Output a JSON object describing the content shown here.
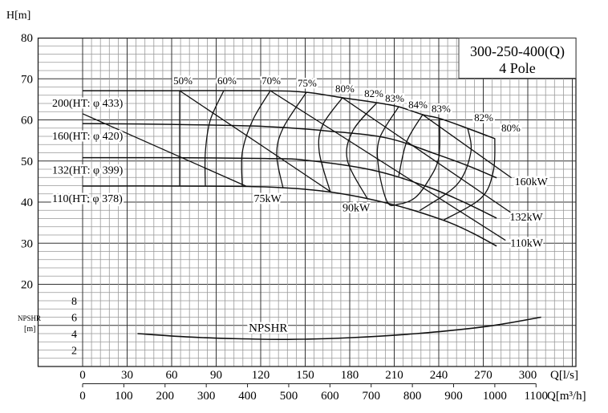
{
  "chart_data": {
    "type": "line",
    "title": "300-250-400(Q)",
    "subtitle": "4 Pole",
    "ylabel": "H[m]",
    "npsh_label": "NPSHR",
    "npsh_unit": "[m]",
    "xlabel": "Q[l/s]",
    "x2label": "Q[m³/h]",
    "xlim": [
      -30.3,
      332.4
    ],
    "ylim": [
      0,
      80
    ],
    "grid": true,
    "yticks": [
      20,
      30,
      40,
      50,
      60,
      70,
      80
    ],
    "npsh_ticks": [
      2,
      4,
      6,
      8
    ],
    "xticks": [
      0,
      30,
      60,
      90,
      120,
      150,
      180,
      210,
      240,
      270,
      300
    ],
    "x2ticks": [
      0,
      100,
      200,
      300,
      400,
      500,
      600,
      700,
      800,
      900,
      1000,
      1100
    ],
    "hq_curves": [
      {
        "label": "200(HT: φ 433)",
        "points": [
          [
            0,
            67.1
          ],
          [
            60,
            67.1
          ],
          [
            126,
            67.1
          ],
          [
            151,
            66.7
          ],
          [
            175,
            65.4
          ],
          [
            198,
            64.2
          ],
          [
            213,
            63.2
          ],
          [
            229,
            61.3
          ],
          [
            241,
            60.3
          ],
          [
            259,
            58
          ],
          [
            278,
            55.4
          ]
        ]
      },
      {
        "label": "160(HT: φ 420)",
        "points": [
          [
            0,
            59.1
          ],
          [
            60,
            58.9
          ],
          [
            123,
            58.4
          ],
          [
            165,
            57.3
          ],
          [
            205,
            55.6
          ],
          [
            238,
            51.7
          ],
          [
            260,
            48.8
          ],
          [
            279,
            45.9
          ]
        ]
      },
      {
        "label": "132(HT: φ 399)",
        "points": [
          [
            0,
            50.8
          ],
          [
            60,
            50.8
          ],
          [
            123,
            50.6
          ],
          [
            150,
            50.2
          ],
          [
            195,
            47.8
          ],
          [
            231,
            43.9
          ],
          [
            255,
            40.3
          ],
          [
            279,
            36.1
          ]
        ]
      },
      {
        "label": "110(HT: φ 378)",
        "points": [
          [
            0,
            43.9
          ],
          [
            60,
            43.9
          ],
          [
            123,
            43.7
          ],
          [
            168,
            42.4
          ],
          [
            208,
            39.5
          ],
          [
            243,
            35.6
          ],
          [
            262,
            32.6
          ],
          [
            279,
            29.3
          ]
        ]
      }
    ],
    "power_lines": [
      {
        "label": "75kW",
        "points": [
          [
            0,
            61.5
          ],
          [
            110,
            43.9
          ]
        ]
      },
      {
        "label": "90kW",
        "points": [
          [
            65.4,
            67.1
          ],
          [
            167.6,
            42.4
          ]
        ]
      },
      {
        "label": "110kW",
        "points": [
          [
            126.5,
            67.1
          ],
          [
            285,
            30.7
          ]
        ]
      },
      {
        "label": "132kW",
        "points": [
          [
            175,
            65.4
          ],
          [
            290,
            37.1
          ]
        ]
      },
      {
        "label": "160kW",
        "points": [
          [
            229,
            61.3
          ],
          [
            289,
            45.9
          ]
        ]
      }
    ],
    "efficiency_curves": [
      {
        "label": "50%",
        "points": [
          [
            65.4,
            67.1
          ],
          [
            65.4,
            43.9
          ]
        ]
      },
      {
        "label": "60%",
        "points": [
          [
            95.1,
            67.1
          ],
          [
            86,
            59.9
          ],
          [
            82.7,
            52.1
          ],
          [
            82.7,
            43.9
          ]
        ]
      },
      {
        "label": "70%",
        "points": [
          [
            126.5,
            67.1
          ],
          [
            114.6,
            59.9
          ],
          [
            107.6,
            52.1
          ],
          [
            107.6,
            43.9
          ]
        ]
      },
      {
        "label": "75%",
        "points": [
          [
            150.8,
            66.7
          ],
          [
            135.1,
            58
          ],
          [
            130.8,
            51.5
          ],
          [
            135.1,
            43.4
          ]
        ]
      },
      {
        "label": "80%",
        "points": [
          [
            175.1,
            65.4
          ],
          [
            161.6,
            58.6
          ],
          [
            159.5,
            52.1
          ],
          [
            167,
            42.4
          ]
        ]
      },
      {
        "label": "82%",
        "points": [
          [
            198.4,
            64.2
          ],
          [
            182.2,
            57.4
          ],
          [
            178.4,
            50.2
          ],
          [
            191.9,
            40.8
          ]
        ]
      },
      {
        "label": "83%",
        "label_end": "83%",
        "points": [
          [
            213,
            63.2
          ],
          [
            200,
            55.4
          ],
          [
            199.5,
            48.2
          ],
          [
            205.4,
            40
          ],
          [
            213,
            39.5
          ],
          [
            223.8,
            41
          ],
          [
            232.4,
            44.9
          ],
          [
            240,
            50.8
          ],
          [
            240.5,
            60.3
          ]
        ]
      },
      {
        "label": "84%",
        "points": [
          [
            229.2,
            61.3
          ],
          [
            218.4,
            54.7
          ],
          [
            213,
            46.3
          ]
        ]
      },
      {
        "label": "82%",
        "points": [
          [
            259.5,
            58
          ],
          [
            261.6,
            52.1
          ],
          [
            252.4,
            44.3
          ],
          [
            227,
            37.9
          ]
        ]
      },
      {
        "label": "80%",
        "points": [
          [
            277.8,
            55.4
          ],
          [
            276.8,
            47.6
          ],
          [
            268.6,
            41
          ],
          [
            243.2,
            35.6
          ]
        ]
      }
    ],
    "npshr": {
      "label": "NPSHR",
      "points": [
        [
          37,
          4.0
        ],
        [
          70,
          3.6
        ],
        [
          100,
          3.4
        ],
        [
          139,
          3.3
        ],
        [
          180,
          3.5
        ],
        [
          225,
          4.0
        ],
        [
          260,
          4.6
        ],
        [
          281,
          5.1
        ],
        [
          309,
          6.0
        ]
      ]
    }
  }
}
